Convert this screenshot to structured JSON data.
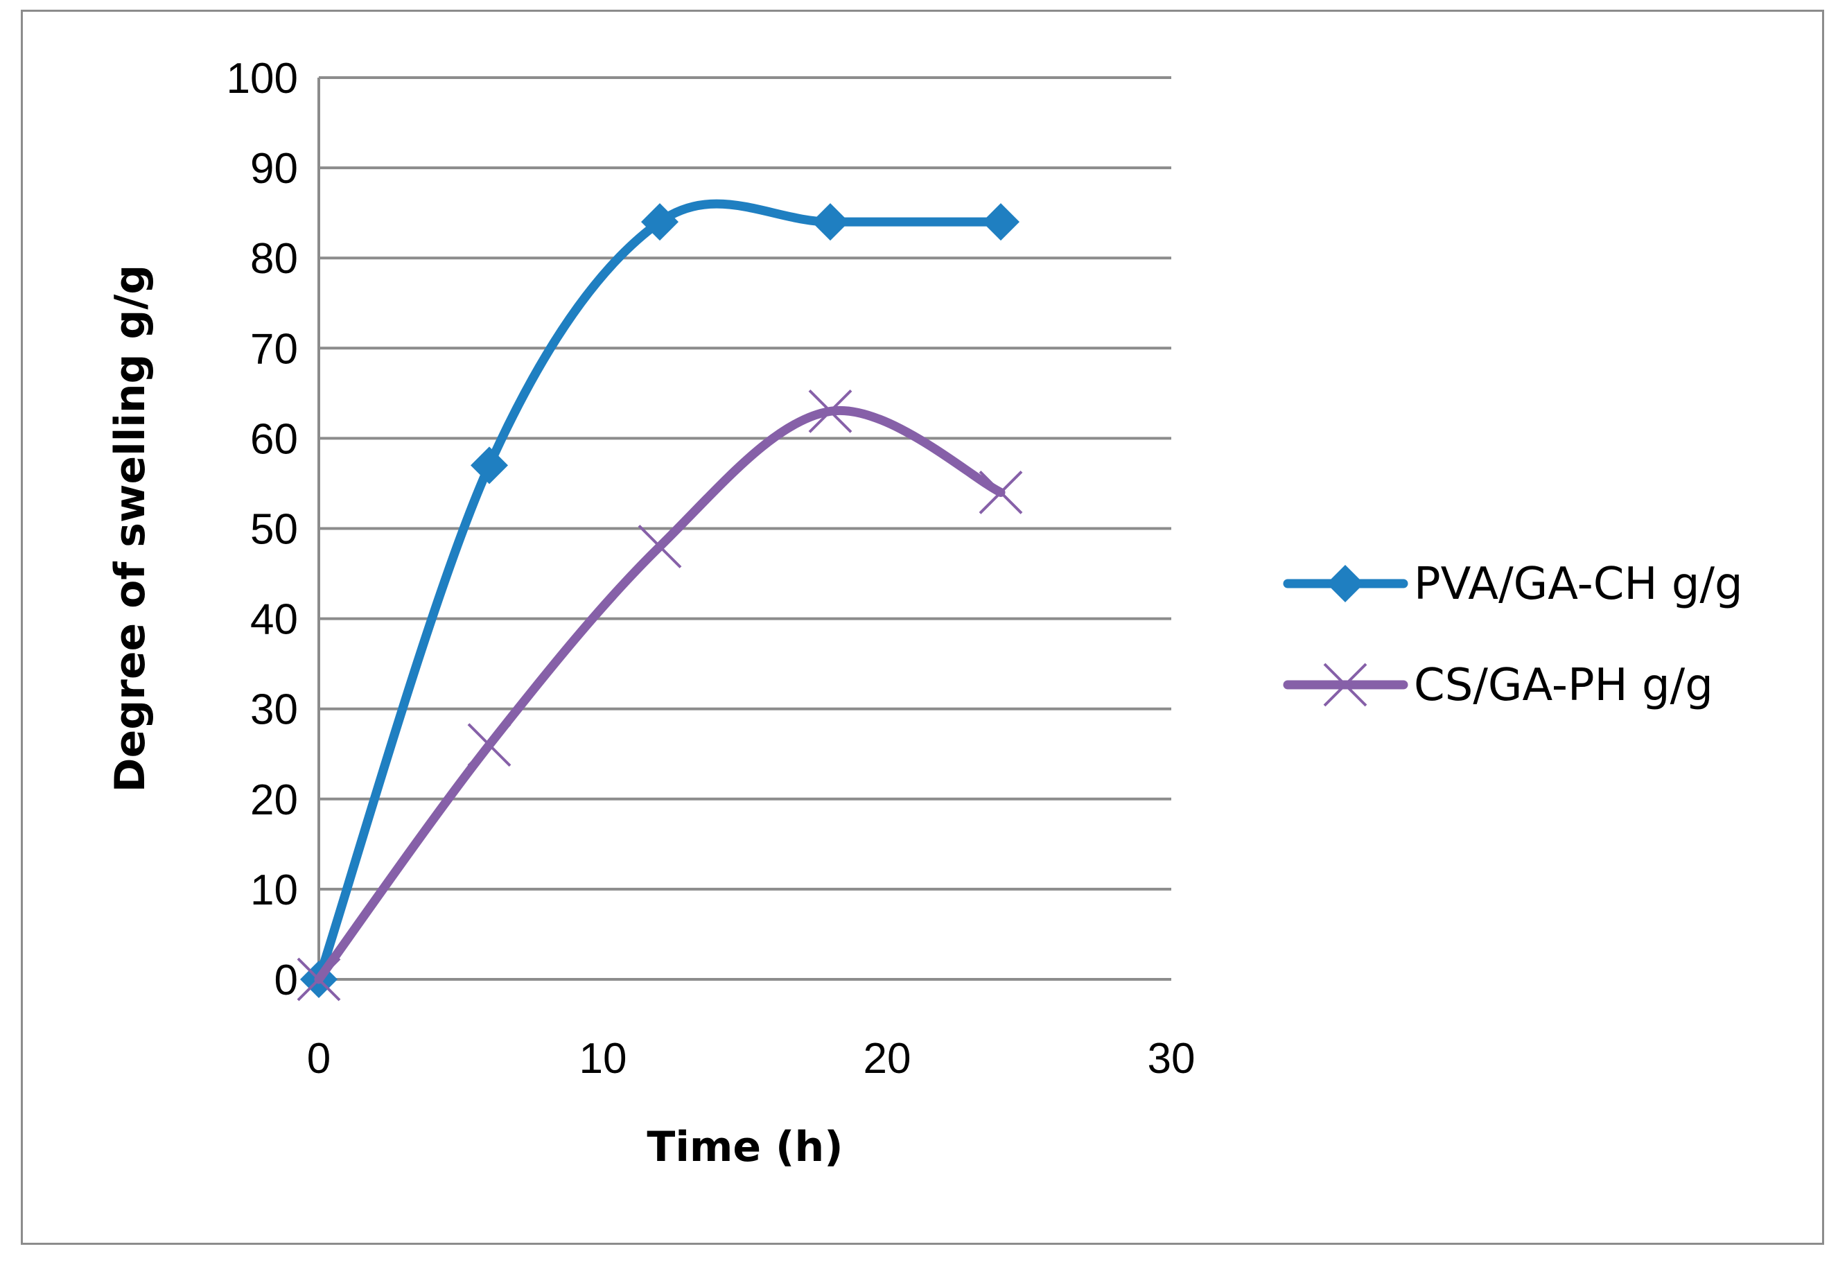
{
  "chart_data": {
    "type": "line",
    "title": "",
    "xlabel": "Time (h)",
    "ylabel": "Degree of swelling g/g",
    "xlim": [
      0,
      30
    ],
    "ylim": [
      0,
      100
    ],
    "x_ticks": [
      0,
      10,
      20,
      30
    ],
    "y_ticks": [
      0,
      10,
      20,
      30,
      40,
      50,
      60,
      70,
      80,
      90,
      100
    ],
    "grid": "horizontal",
    "smoothed": true,
    "legend_position": "right",
    "series": [
      {
        "name": "PVA/GA-CH g/g",
        "color": "#1f7fc1",
        "marker": "diamond",
        "x": [
          0,
          6,
          12,
          18,
          24
        ],
        "y": [
          0,
          57,
          84,
          84,
          84
        ]
      },
      {
        "name": "CS/GA-PH g/g",
        "color": "#8660a8",
        "marker": "x",
        "x": [
          0,
          6,
          12,
          18,
          24
        ],
        "y": [
          0,
          26,
          48,
          63,
          54
        ]
      }
    ]
  }
}
